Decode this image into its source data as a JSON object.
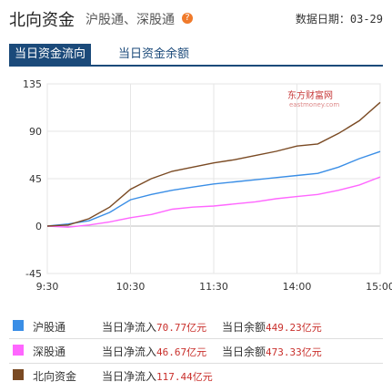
{
  "header": {
    "title": "北向资金",
    "subtitle": "沪股通、深股通",
    "help_icon": "question-icon",
    "date_label": "数据日期：",
    "date_value": "03-29"
  },
  "tabs": [
    {
      "label": "当日资金流向",
      "active": true
    },
    {
      "label": "当日资金余额",
      "active": false
    }
  ],
  "watermark": {
    "text": "东方财富网",
    "sub": "eastmoney.com"
  },
  "colors": {
    "hgt": "#3a8ee6",
    "sgt": "#ff66ff",
    "north": "#7a4a23",
    "accent": "#1b4a7a"
  },
  "chart_data": {
    "type": "line",
    "x_ticks": [
      "9:30",
      "10:30",
      "11:30",
      "14:00",
      "15:00"
    ],
    "y_ticks": [
      135,
      90,
      45,
      0,
      -45
    ],
    "ylim": [
      -45,
      135
    ],
    "x": [
      "9:30",
      "9:45",
      "10:00",
      "10:15",
      "10:30",
      "10:45",
      "11:00",
      "11:15",
      "11:30",
      "13:15",
      "13:30",
      "13:45",
      "14:00",
      "14:15",
      "14:30",
      "14:45",
      "15:00"
    ],
    "series": [
      {
        "name": "沪股通",
        "color": "#3a8ee6",
        "values": [
          0,
          2,
          5,
          13,
          25,
          30,
          34,
          37,
          40,
          42,
          44,
          46,
          48,
          50,
          56,
          64,
          70.77
        ]
      },
      {
        "name": "深股通",
        "color": "#ff66ff",
        "values": [
          0,
          -1,
          1,
          4,
          8,
          11,
          16,
          18,
          19,
          21,
          23,
          26,
          28,
          30,
          34,
          39,
          46.67
        ]
      },
      {
        "name": "北向资金",
        "color": "#7a4a23",
        "values": [
          0,
          1,
          7,
          18,
          35,
          45,
          52,
          56,
          60,
          63,
          67,
          71,
          76,
          78,
          88,
          100,
          117.44
        ]
      }
    ]
  },
  "legend": {
    "flow_label": "当日净流入",
    "balance_label": "当日余额",
    "items": [
      {
        "name": "沪股通",
        "flow": "70.77亿元",
        "balance": "449.23亿元"
      },
      {
        "name": "深股通",
        "flow": "46.67亿元",
        "balance": "473.33亿元"
      },
      {
        "name": "北向资金",
        "flow": "117.44亿元",
        "balance": ""
      }
    ]
  }
}
